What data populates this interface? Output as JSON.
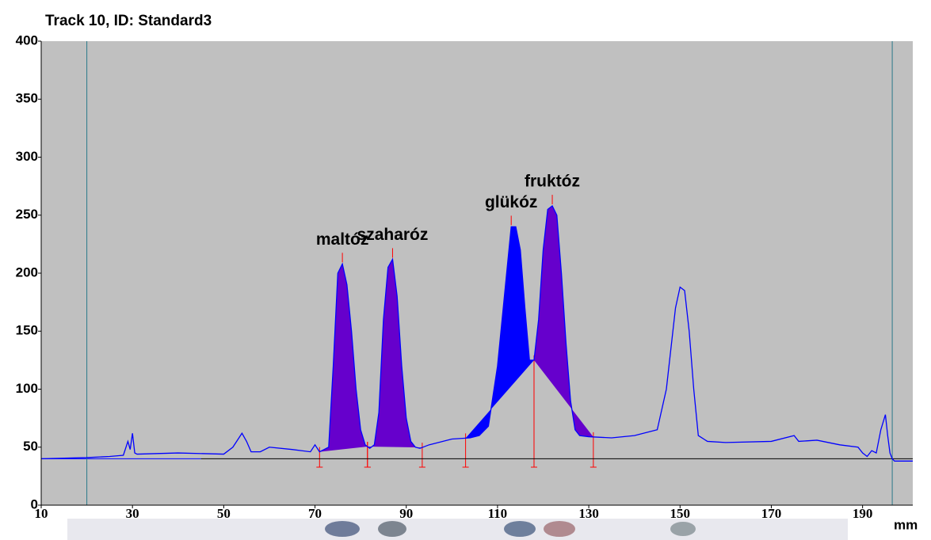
{
  "chart_data": {
    "type": "line",
    "title": "Track 10, ID: Standard3",
    "x_label": "mm",
    "xlim": [
      10,
      201
    ],
    "ylim": [
      0,
      400
    ],
    "xticks": [
      10,
      30,
      50,
      70,
      90,
      110,
      130,
      150,
      170,
      190
    ],
    "yticks": [
      0,
      50,
      100,
      150,
      200,
      250,
      300,
      350,
      400
    ],
    "x": [
      10,
      20,
      25,
      28,
      29,
      29.5,
      30,
      30.5,
      31,
      40,
      50,
      52,
      54,
      55,
      56,
      58,
      60,
      65,
      69,
      70,
      71,
      72,
      73,
      74,
      75,
      76,
      77,
      78,
      79,
      80,
      81,
      82,
      83,
      84,
      85,
      86,
      87,
      88,
      89,
      90,
      91,
      92,
      93,
      95,
      100,
      104,
      106,
      108,
      110,
      112,
      113,
      114,
      115,
      116,
      117,
      118,
      119,
      120,
      121,
      122,
      123,
      124,
      125,
      126,
      127,
      128,
      130,
      135,
      140,
      145,
      147,
      149,
      150,
      151,
      152,
      153,
      154,
      156,
      160,
      170,
      175,
      176,
      180,
      185,
      189,
      190,
      191,
      192,
      193,
      194,
      195,
      195.5,
      196,
      196.5,
      197,
      201
    ],
    "series": [
      {
        "name": "Track 10",
        "color": "#0000ff",
        "values": [
          40,
          41,
          42,
          43,
          55,
          48,
          62,
          45,
          44,
          45,
          44,
          50,
          62,
          55,
          46,
          46,
          50,
          48,
          46,
          52,
          46,
          48,
          50,
          120,
          200,
          208,
          190,
          150,
          100,
          65,
          52,
          49,
          52,
          80,
          160,
          205,
          212,
          180,
          120,
          75,
          55,
          50,
          49,
          52,
          57,
          58,
          60,
          68,
          120,
          200,
          240,
          240,
          220,
          170,
          125,
          125,
          160,
          220,
          255,
          258,
          250,
          200,
          140,
          90,
          65,
          60,
          59,
          58,
          60,
          65,
          100,
          170,
          188,
          185,
          150,
          100,
          60,
          55,
          54,
          55,
          60,
          55,
          56,
          52,
          50,
          45,
          42,
          47,
          45,
          65,
          78,
          60,
          45,
          40,
          38,
          38
        ]
      }
    ],
    "peaks": [
      {
        "label": "maltóz",
        "start": 71,
        "end": 81.5,
        "color": "#6600cc"
      },
      {
        "label": "szaharóz",
        "start": 81.5,
        "end": 93.5,
        "color": "#6600cc"
      },
      {
        "label": "glükóz",
        "start": 103,
        "end": 118,
        "color": "#0000ff"
      },
      {
        "label": "fruktóz",
        "start": 118,
        "end": 131,
        "color": "#6600cc"
      }
    ],
    "baseline": 40,
    "markers": [
      20,
      196.5
    ]
  }
}
